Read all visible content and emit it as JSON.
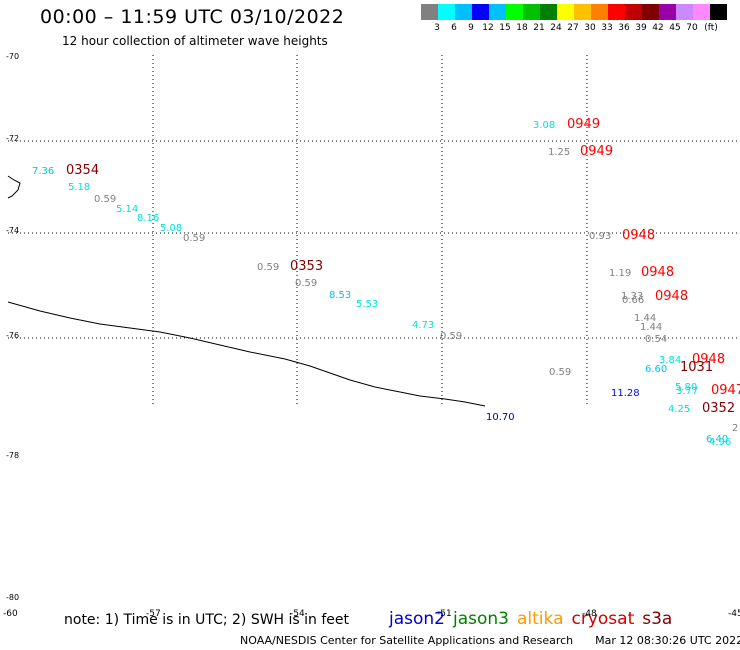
{
  "header": {
    "title": "00:00 – 11:59 UTC 03/10/2022",
    "subtitle": "12 hour collection of altimeter wave heights"
  },
  "legend": {
    "unit": "(ft)",
    "colors": [
      "#808080",
      "#00ffff",
      "#00bfff",
      "#0000ff",
      "#00c0ff",
      "#00ff00",
      "#00c000",
      "#008000",
      "#ffff00",
      "#ffc000",
      "#ff8000",
      "#ff0000",
      "#c00000",
      "#800000",
      "#9900aa",
      "#cc88ff",
      "#ff88ff",
      "#000000"
    ],
    "labels": [
      "3",
      "6",
      "9",
      "12",
      "15",
      "18",
      "21",
      "24",
      "27",
      "30",
      "33",
      "36",
      "39",
      "42",
      "45",
      "70"
    ]
  },
  "axes": {
    "lat_labels": [
      "-70",
      "-72",
      "-74",
      "-76",
      "-78",
      "-80"
    ],
    "lon_labels": [
      "-60",
      "-57",
      "-54",
      "-51",
      "-48",
      "-45"
    ]
  },
  "observations": [
    {
      "text": "3.08",
      "color": "#00e0e0"
    },
    {
      "text": "0949",
      "color": "#ff0000"
    },
    {
      "text": "1.25",
      "color": "#808080"
    },
    {
      "text": "0949",
      "color": "#ff0000"
    },
    {
      "text": "7.36",
      "color": "#00cccc"
    },
    {
      "text": "0354",
      "color": "#800000"
    },
    {
      "text": "5.18",
      "color": "#00e0e0"
    },
    {
      "text": "0.59",
      "color": "#808080"
    },
    {
      "text": "5.14",
      "color": "#00e0e0"
    },
    {
      "text": "8.16",
      "color": "#00e0e0"
    },
    {
      "text": "5.08",
      "color": "#00e0e0"
    },
    {
      "text": "0.59",
      "color": "#808080"
    },
    {
      "text": "0.93",
      "color": "#808080"
    },
    {
      "text": "0948",
      "color": "#ff0000"
    },
    {
      "text": "0.59",
      "color": "#808080"
    },
    {
      "text": "0353",
      "color": "#800000"
    },
    {
      "text": "1.19",
      "color": "#808080"
    },
    {
      "text": "0948",
      "color": "#ff0000"
    },
    {
      "text": "0.59",
      "color": "#808080"
    },
    {
      "text": "1.33",
      "color": "#808080"
    },
    {
      "text": "0.66",
      "color": "#808080"
    },
    {
      "text": "0948",
      "color": "#ff0000"
    },
    {
      "text": "8.53",
      "color": "#00c0ff"
    },
    {
      "text": "5.53",
      "color": "#00e0e0"
    },
    {
      "text": "1.44",
      "color": "#808080"
    },
    {
      "text": "1.44",
      "color": "#808080"
    },
    {
      "text": "4.73",
      "color": "#00e0e0"
    },
    {
      "text": "0.59",
      "color": "#808080"
    },
    {
      "text": "0.54",
      "color": "#808080"
    },
    {
      "text": "3.84",
      "color": "#00e0e0"
    },
    {
      "text": "0948",
      "color": "#ff0000"
    },
    {
      "text": "6.60",
      "color": "#00c0ff"
    },
    {
      "text": "1031",
      "color": "#800000"
    },
    {
      "text": "0.59",
      "color": "#808080"
    },
    {
      "text": "11.28",
      "color": "#0000ff"
    },
    {
      "text": "5.80",
      "color": "#00e0e0"
    },
    {
      "text": "3.77",
      "color": "#00e0e0"
    },
    {
      "text": "0947",
      "color": "#ff0000"
    },
    {
      "text": "4.25",
      "color": "#00e0e0"
    },
    {
      "text": "0352",
      "color": "#800000"
    },
    {
      "text": "2",
      "color": "#808080"
    },
    {
      "text": "6.40",
      "color": "#00c0ff"
    },
    {
      "text": "4.96",
      "color": "#00e0e0"
    },
    {
      "text": "10.70",
      "color": "#0000aa"
    }
  ],
  "footer": {
    "note": "note: 1) Time is in UTC; 2) SWH is in feet",
    "satellites": [
      {
        "name": "jason2",
        "color": "#0000cc"
      },
      {
        "name": "jason3",
        "color": "#008000"
      },
      {
        "name": "altika",
        "color": "#ff9900"
      },
      {
        "name": "cryosat",
        "color": "#cc0000"
      },
      {
        "name": "s3a",
        "color": "#800000"
      }
    ],
    "credit": "NOAA/NESDIS Center for Satellite Applications and Research",
    "timestamp": "Mar 12 08:30:26 UTC 2022"
  }
}
